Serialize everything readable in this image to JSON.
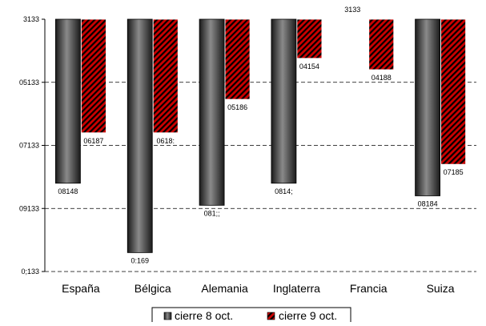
{
  "chart_data": {
    "type": "bar",
    "title": "",
    "xlabel": "",
    "ylabel": "",
    "orientation": "inverted",
    "grid": "dashed horizontal",
    "legend": "bottom-center",
    "categories": [
      "España",
      "Bélgica",
      "Alemania",
      "Inglaterra",
      "Francia",
      "Suiza"
    ],
    "series": [
      {
        "name": "cierre 8 oct.",
        "color": "#404040",
        "values": [
          -2.6,
          -3.7,
          -2.95,
          -2.6,
          null,
          -2.8
        ],
        "labels": [
          "08148",
          "0:169",
          "081;;",
          "0814;",
          "",
          "08184"
        ]
      },
      {
        "name": "cierre 9 oct.",
        "color": "#cc0000",
        "values": [
          -1.8,
          -1.8,
          -1.27,
          -0.62,
          -0.8,
          -2.3
        ],
        "labels": [
          "06187",
          "0618:",
          "05186",
          "04154",
          "04188",
          "07185"
        ]
      }
    ],
    "zero_label": "3133",
    "ylim": [
      -4,
      0
    ],
    "yticks": [
      0,
      -1,
      -2,
      -3,
      -4
    ],
    "ytick_labels": [
      "3133",
      "05133",
      "07133",
      "09133",
      "0;133"
    ]
  }
}
